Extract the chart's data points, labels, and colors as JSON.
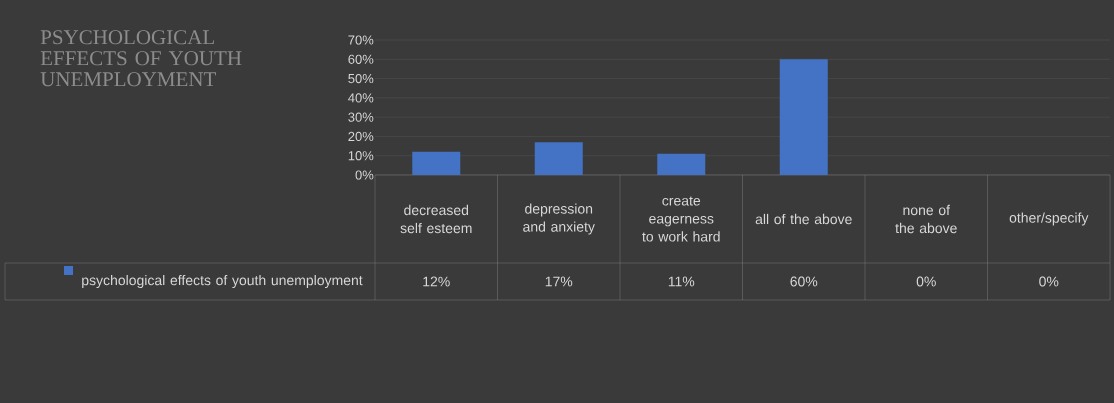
{
  "chart_data": {
    "type": "bar",
    "title": "PSYCHOLOGICAL EFFECTS OF YOUTH UNEMPLOYMENT",
    "categories": [
      "decreased self esteem",
      "depression and anxiety",
      "create eagerness to work hard",
      "all of the above",
      "none of the above",
      "other/specify"
    ],
    "series": [
      {
        "name": "psychological effects of youth unemployment",
        "color": "#4472c4",
        "values": [
          12,
          17,
          11,
          60,
          0,
          0
        ],
        "value_labels": [
          "12%",
          "17%",
          "11%",
          "60%",
          "0%",
          "0%"
        ]
      }
    ],
    "ylim": [
      0,
      70
    ],
    "yticks": [
      {
        "value": 0,
        "label": "0%"
      },
      {
        "value": 10,
        "label": "10%"
      },
      {
        "value": 20,
        "label": "20%"
      },
      {
        "value": 30,
        "label": "30%"
      },
      {
        "value": 40,
        "label": "40%"
      },
      {
        "value": 50,
        "label": "50%"
      },
      {
        "value": 60,
        "label": "60%"
      },
      {
        "value": 70,
        "label": "70%"
      }
    ],
    "grid": "y"
  }
}
